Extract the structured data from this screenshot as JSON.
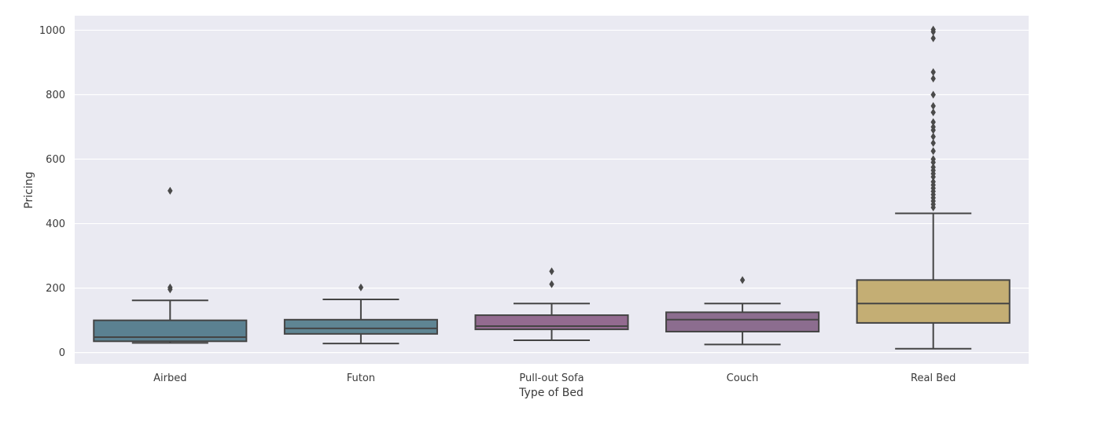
{
  "chart_data": {
    "type": "box",
    "title": "",
    "xlabel": "Type of Bed",
    "ylabel": "Pricing",
    "ylim": [
      -35,
      1045
    ],
    "yticks": [
      0,
      200,
      400,
      600,
      800,
      1000
    ],
    "grid": true,
    "legend": "none",
    "categories": [
      "Airbed",
      "Futon",
      "Pull-out Sofa",
      "Couch",
      "Real Bed"
    ],
    "boxes": [
      {
        "category": "Airbed",
        "color": "#5b8191",
        "whisker_low": 30,
        "q1": 35,
        "median": 48,
        "q3": 100,
        "whisker_high": 162,
        "outliers": [
          196,
          202,
          502
        ]
      },
      {
        "category": "Futon",
        "color": "#5f8593",
        "whisker_low": 28,
        "q1": 58,
        "median": 75,
        "q3": 102,
        "whisker_high": 165,
        "outliers": [
          202
        ]
      },
      {
        "category": "Pull-out Sofa",
        "color": "#936b90",
        "whisker_low": 38,
        "q1": 72,
        "median": 82,
        "q3": 116,
        "whisker_high": 152,
        "outliers": [
          212,
          252
        ]
      },
      {
        "category": "Couch",
        "color": "#8c6d8f",
        "whisker_low": 25,
        "q1": 65,
        "median": 102,
        "q3": 125,
        "whisker_high": 152,
        "outliers": [
          225
        ]
      },
      {
        "category": "Real Bed",
        "color": "#c4ae74",
        "whisker_low": 12,
        "q1": 92,
        "median": 152,
        "q3": 225,
        "whisker_high": 432,
        "outliers": [
          450,
          460,
          470,
          480,
          490,
          500,
          510,
          520,
          530,
          545,
          555,
          565,
          575,
          590,
          600,
          625,
          650,
          670,
          690,
          700,
          715,
          745,
          765,
          800,
          850,
          870,
          975,
          995,
          1002
        ]
      }
    ]
  }
}
